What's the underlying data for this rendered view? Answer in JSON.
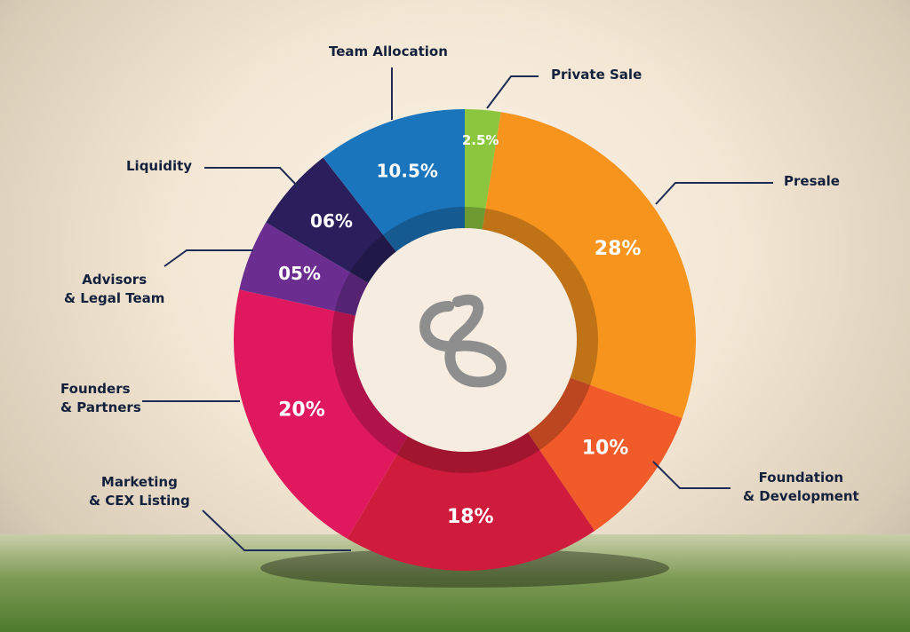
{
  "chart_data": {
    "type": "pie",
    "categories": [
      "Private Sale",
      "Presale",
      "Foundation\n& Development",
      "Marketing\n& CEX Listing",
      "Founders\n& Partners",
      "Advisors\n& Legal Team",
      "Liquidity",
      "Team Allocation"
    ],
    "values": [
      2.5,
      28,
      10,
      18,
      20,
      5,
      6,
      10.5
    ],
    "value_labels": [
      "2.5%",
      "28%",
      "10%",
      "18%",
      "20%",
      "05%",
      "06%",
      "10.5%"
    ],
    "colors": [
      "#8cc63f",
      "#f7941d",
      "#f15a29",
      "#cf1b3c",
      "#e0195f",
      "#6c2d91",
      "#2a1f5c",
      "#1b75bc"
    ]
  }
}
